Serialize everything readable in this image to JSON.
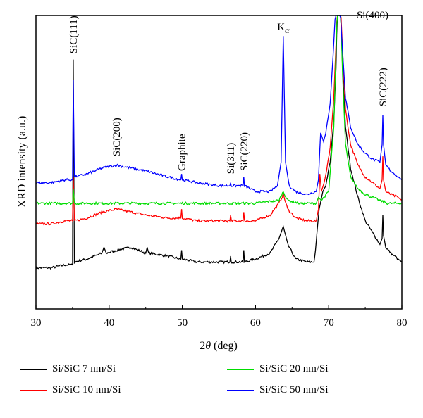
{
  "chart_data": {
    "type": "line",
    "xlabel_prefix": "2",
    "xlabel_theta": "θ",
    "xlabel_suffix": " (deg)",
    "ylabel": "XRD intensity (a.u.)",
    "xlim": [
      30,
      80
    ],
    "x_ticks": [
      30,
      40,
      50,
      60,
      70,
      80
    ],
    "grid": false,
    "legend": "bottom",
    "series": [
      {
        "name": "Si/SiC 7 nm/Si",
        "color": "#000000",
        "points": [
          [
            30,
            0.14
          ],
          [
            32,
            0.14
          ],
          [
            34,
            0.15
          ],
          [
            35.0,
            0.15
          ],
          [
            35.1,
            0.85
          ],
          [
            35.25,
            0.16
          ],
          [
            37,
            0.17
          ],
          [
            39,
            0.19
          ],
          [
            39.3,
            0.21
          ],
          [
            39.6,
            0.19
          ],
          [
            41,
            0.2
          ],
          [
            43,
            0.21
          ],
          [
            45,
            0.19
          ],
          [
            45.2,
            0.21
          ],
          [
            45.4,
            0.19
          ],
          [
            48,
            0.18
          ],
          [
            49.8,
            0.17
          ],
          [
            49.9,
            0.2
          ],
          [
            50.0,
            0.17
          ],
          [
            52,
            0.16
          ],
          [
            55,
            0.16
          ],
          [
            56.5,
            0.16
          ],
          [
            56.6,
            0.18
          ],
          [
            56.7,
            0.16
          ],
          [
            58.3,
            0.16
          ],
          [
            58.4,
            0.2
          ],
          [
            58.5,
            0.16
          ],
          [
            60,
            0.17
          ],
          [
            62,
            0.19
          ],
          [
            63.2,
            0.24
          ],
          [
            63.8,
            0.28
          ],
          [
            64.4,
            0.22
          ],
          [
            65.5,
            0.17
          ],
          [
            67,
            0.16
          ],
          [
            68.0,
            0.16
          ],
          [
            68.2,
            0.2
          ],
          [
            68.4,
            0.26
          ],
          [
            68.7,
            0.34
          ],
          [
            69.2,
            0.4
          ],
          [
            69.6,
            0.42
          ],
          [
            70.2,
            0.5
          ],
          [
            70.7,
            0.64
          ],
          [
            71.0,
            0.82
          ],
          [
            71.2,
            1.05
          ],
          [
            71.6,
            1.05
          ],
          [
            71.9,
            0.82
          ],
          [
            72.3,
            0.62
          ],
          [
            73,
            0.48
          ],
          [
            74,
            0.38
          ],
          [
            75,
            0.3
          ],
          [
            76,
            0.26
          ],
          [
            77.0,
            0.22
          ],
          [
            77.3,
            0.24
          ],
          [
            77.4,
            0.32
          ],
          [
            77.5,
            0.25
          ],
          [
            77.8,
            0.21
          ],
          [
            78.5,
            0.19
          ],
          [
            79.5,
            0.17
          ],
          [
            80,
            0.16
          ]
        ]
      },
      {
        "name": "Si/SiC 10 nm/Si",
        "color": "#ff0000",
        "points": [
          [
            30,
            0.29
          ],
          [
            32,
            0.29
          ],
          [
            34,
            0.3
          ],
          [
            35.0,
            0.3
          ],
          [
            35.1,
            0.45
          ],
          [
            35.25,
            0.3
          ],
          [
            37,
            0.31
          ],
          [
            39,
            0.33
          ],
          [
            41,
            0.34
          ],
          [
            43,
            0.33
          ],
          [
            45,
            0.32
          ],
          [
            48,
            0.31
          ],
          [
            49.8,
            0.31
          ],
          [
            49.9,
            0.34
          ],
          [
            50.0,
            0.31
          ],
          [
            52,
            0.3
          ],
          [
            55,
            0.3
          ],
          [
            56.5,
            0.3
          ],
          [
            56.6,
            0.32
          ],
          [
            56.7,
            0.3
          ],
          [
            58.3,
            0.3
          ],
          [
            58.4,
            0.33
          ],
          [
            58.5,
            0.3
          ],
          [
            60,
            0.3
          ],
          [
            62,
            0.32
          ],
          [
            63.2,
            0.36
          ],
          [
            63.8,
            0.39
          ],
          [
            64.4,
            0.34
          ],
          [
            65.5,
            0.31
          ],
          [
            67,
            0.3
          ],
          [
            68.3,
            0.3
          ],
          [
            68.6,
            0.34
          ],
          [
            68.8,
            0.46
          ],
          [
            69.0,
            0.4
          ],
          [
            69.5,
            0.44
          ],
          [
            70.2,
            0.55
          ],
          [
            70.7,
            0.72
          ],
          [
            71.0,
            0.9
          ],
          [
            71.2,
            1.05
          ],
          [
            71.6,
            1.05
          ],
          [
            71.9,
            0.88
          ],
          [
            72.3,
            0.68
          ],
          [
            73,
            0.56
          ],
          [
            74,
            0.49
          ],
          [
            75,
            0.45
          ],
          [
            76,
            0.43
          ],
          [
            77.0,
            0.41
          ],
          [
            77.3,
            0.44
          ],
          [
            77.4,
            0.52
          ],
          [
            77.5,
            0.44
          ],
          [
            77.8,
            0.4
          ],
          [
            78.5,
            0.39
          ],
          [
            79.5,
            0.38
          ],
          [
            80,
            0.37
          ]
        ]
      },
      {
        "name": "Si/SiC 20 nm/Si",
        "color": "#00dd00",
        "points": [
          [
            30,
            0.36
          ],
          [
            32,
            0.36
          ],
          [
            34,
            0.36
          ],
          [
            35.0,
            0.36
          ],
          [
            35.1,
            0.41
          ],
          [
            35.25,
            0.36
          ],
          [
            37,
            0.36
          ],
          [
            40,
            0.36
          ],
          [
            45,
            0.36
          ],
          [
            50,
            0.36
          ],
          [
            55,
            0.36
          ],
          [
            58,
            0.36
          ],
          [
            60,
            0.36
          ],
          [
            63.2,
            0.37
          ],
          [
            63.8,
            0.4
          ],
          [
            64.4,
            0.37
          ],
          [
            66,
            0.36
          ],
          [
            68.3,
            0.36
          ],
          [
            68.6,
            0.38
          ],
          [
            69.0,
            0.37
          ],
          [
            70,
            0.4
          ],
          [
            70.7,
            0.62
          ],
          [
            71.0,
            0.88
          ],
          [
            71.2,
            1.05
          ],
          [
            71.6,
            1.05
          ],
          [
            71.9,
            0.8
          ],
          [
            72.3,
            0.56
          ],
          [
            73,
            0.45
          ],
          [
            74,
            0.41
          ],
          [
            75,
            0.39
          ],
          [
            76,
            0.38
          ],
          [
            77,
            0.37
          ],
          [
            78,
            0.36
          ],
          [
            80,
            0.36
          ]
        ]
      },
      {
        "name": "Si/SiC 50 nm/Si",
        "color": "#0000ff",
        "points": [
          [
            30,
            0.43
          ],
          [
            32,
            0.43
          ],
          [
            34,
            0.44
          ],
          [
            35.0,
            0.44
          ],
          [
            35.1,
            0.78
          ],
          [
            35.25,
            0.45
          ],
          [
            37,
            0.46
          ],
          [
            39,
            0.48
          ],
          [
            41,
            0.49
          ],
          [
            43,
            0.48
          ],
          [
            45,
            0.47
          ],
          [
            48,
            0.45
          ],
          [
            49.8,
            0.44
          ],
          [
            49.9,
            0.46
          ],
          [
            50.0,
            0.44
          ],
          [
            52,
            0.43
          ],
          [
            55,
            0.42
          ],
          [
            56.5,
            0.42
          ],
          [
            56.6,
            0.43
          ],
          [
            56.7,
            0.42
          ],
          [
            58.3,
            0.42
          ],
          [
            58.4,
            0.45
          ],
          [
            58.5,
            0.42
          ],
          [
            60,
            0.4
          ],
          [
            62,
            0.4
          ],
          [
            63.0,
            0.42
          ],
          [
            63.5,
            0.5
          ],
          [
            63.8,
            0.93
          ],
          [
            64.1,
            0.5
          ],
          [
            64.6,
            0.42
          ],
          [
            65.5,
            0.4
          ],
          [
            67,
            0.39
          ],
          [
            68.3,
            0.4
          ],
          [
            68.6,
            0.44
          ],
          [
            68.9,
            0.6
          ],
          [
            69.3,
            0.57
          ],
          [
            69.6,
            0.6
          ],
          [
            70.2,
            0.7
          ],
          [
            70.6,
            0.86
          ],
          [
            71.0,
            1.05
          ],
          [
            71.5,
            1.05
          ],
          [
            71.9,
            0.88
          ],
          [
            72.3,
            0.72
          ],
          [
            73,
            0.62
          ],
          [
            74,
            0.56
          ],
          [
            75,
            0.53
          ],
          [
            76,
            0.51
          ],
          [
            77.0,
            0.5
          ],
          [
            77.3,
            0.56
          ],
          [
            77.4,
            0.66
          ],
          [
            77.5,
            0.56
          ],
          [
            77.8,
            0.49
          ],
          [
            78.5,
            0.47
          ],
          [
            79.5,
            0.45
          ],
          [
            80,
            0.44
          ]
        ]
      }
    ],
    "annotations": [
      {
        "text": "SiC(111)",
        "x": 35.1,
        "y": 0.87,
        "rotate": true
      },
      {
        "text": "SiC(200)",
        "x": 41.0,
        "y": 0.52,
        "rotate": true
      },
      {
        "text": "Graphite",
        "x": 49.9,
        "y": 0.47,
        "rotate": true
      },
      {
        "text": "Si(311)",
        "x": 56.6,
        "y": 0.46,
        "rotate": true
      },
      {
        "text": "SiC(220)",
        "x": 58.4,
        "y": 0.47,
        "rotate": true
      },
      {
        "text": "SiC(222)",
        "x": 77.4,
        "y": 0.69,
        "rotate": true
      },
      {
        "text": "Si(400)",
        "x": 76.0,
        "y": 0.99,
        "rotate": false
      }
    ],
    "k_alpha": {
      "main": "K",
      "sub": "α",
      "x": 63.8,
      "y": 0.95
    }
  }
}
